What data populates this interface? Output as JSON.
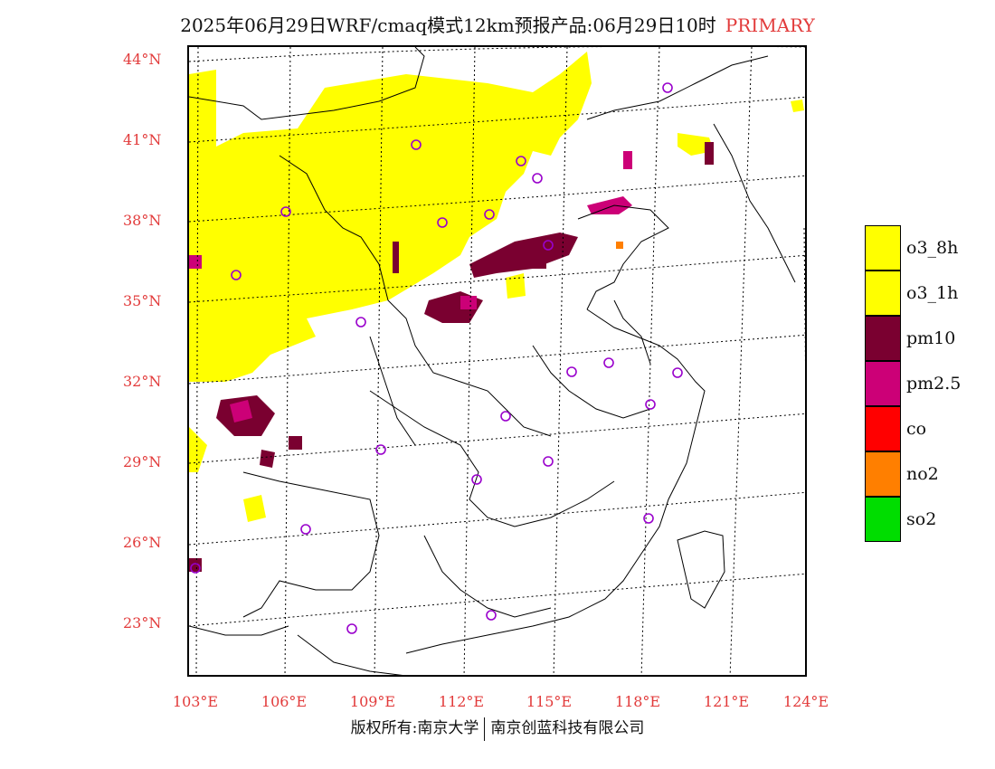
{
  "title": {
    "main": "2025年06月29日WRF/cmaq模式12km预报产品:06月29日10时",
    "tag": "PRIMARY"
  },
  "axes": {
    "lat_labels": [
      "44°N",
      "41°N",
      "38°N",
      "35°N",
      "32°N",
      "29°N",
      "26°N",
      "23°N"
    ],
    "lon_labels": [
      "103°E",
      "106°E",
      "109°E",
      "112°E",
      "115°E",
      "118°E",
      "121°E",
      "124°E"
    ]
  },
  "legend": [
    {
      "label": "o3_8h",
      "color": "#ffff00"
    },
    {
      "label": "o3_1h",
      "color": "#ffff00"
    },
    {
      "label": "pm10",
      "color": "#7a0030"
    },
    {
      "label": "pm2.5",
      "color": "#cc0077"
    },
    {
      "label": "co",
      "color": "#ff0000"
    },
    {
      "label": "no2",
      "color": "#ff7f00"
    },
    {
      "label": "so2",
      "color": "#00dd00"
    }
  ],
  "footer": {
    "left": "版权所有:南京大学",
    "right": "南京创蓝科技有限公司"
  },
  "colors": {
    "accent": "#e23b3b",
    "station_marker": "#9900cc"
  }
}
